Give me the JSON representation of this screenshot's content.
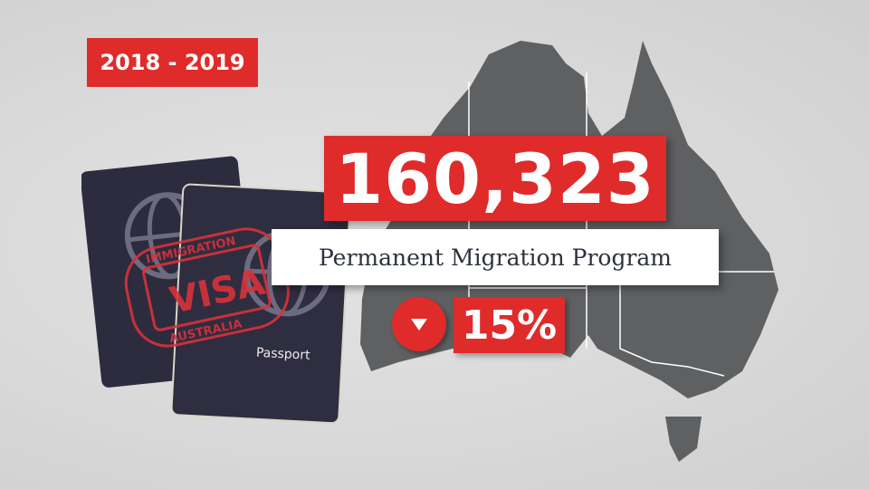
{
  "period_badge": "2018 - 2019",
  "headline_number": "160,323",
  "headline_label": "Permanent Migration Program",
  "change": {
    "direction": "down",
    "icon": "triangle-down-icon",
    "value": "15%"
  },
  "passport": {
    "cover_text": "Passport",
    "stamp_top": "IMMIGRATION",
    "stamp_middle": "VISA",
    "stamp_bottom": "AUSTRALIA"
  },
  "colors": {
    "accent_red": "#e02b2b",
    "map_gray": "#5f6062",
    "passport_navy": "#2d2b3e",
    "label_text": "#2d323d"
  }
}
